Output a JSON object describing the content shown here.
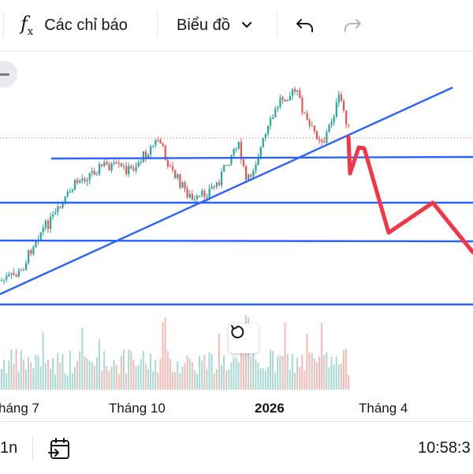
{
  "toolbar": {
    "indicators_icon": "fx-icon",
    "indicators_label": "Các chỉ báo",
    "chart_type_label": "Biểu đồ",
    "dropdown_icon": "chevron-down-icon",
    "undo_icon": "undo-icon",
    "redo_icon": "redo-icon"
  },
  "chart": {
    "x_labels": [
      "háng 7",
      "Tháng 10",
      "2026",
      "Tháng 4"
    ],
    "colors": {
      "up": "#26a69a",
      "down": "#ef5350",
      "trendline": "#2962ff",
      "forecast": "#f23645",
      "volume_up": "#a8d9d3",
      "volume_down": "#f7b9b6"
    },
    "zoom_out_icon": "minus-icon",
    "reset_icon": "reset-icon"
  },
  "bottombar": {
    "interval": "1n",
    "goto_date_icon": "calendar-arrow-icon",
    "clock": "10:58:3"
  }
}
